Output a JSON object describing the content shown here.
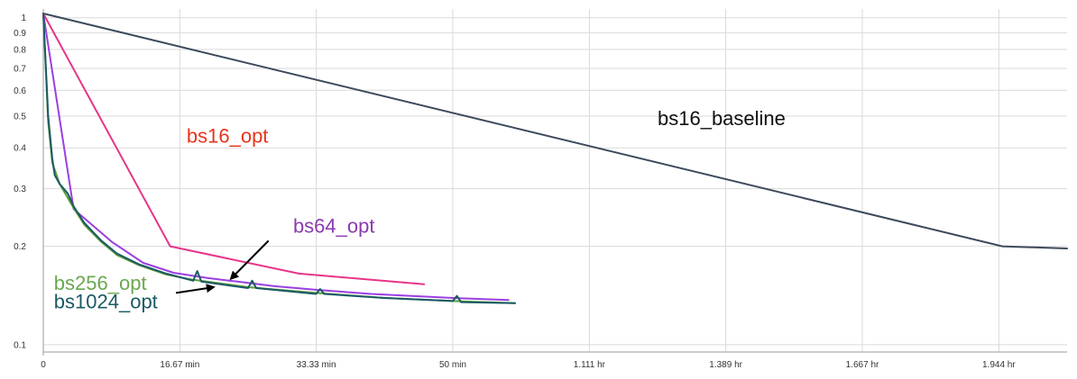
{
  "chart_data": {
    "type": "line",
    "title": "",
    "xlabel": "",
    "ylabel": "",
    "y_scale": "log",
    "grid": true,
    "xlim_minutes": [
      0,
      125
    ],
    "ylim": [
      0.095,
      1.05
    ],
    "x_ticks": [
      {
        "minutes": 0,
        "label": "0"
      },
      {
        "minutes": 16.67,
        "label": "16.67 min"
      },
      {
        "minutes": 33.33,
        "label": "33.33 min"
      },
      {
        "minutes": 50,
        "label": "50 min"
      },
      {
        "minutes": 66.67,
        "label": "1.111 hr"
      },
      {
        "minutes": 83.33,
        "label": "1.389 hr"
      },
      {
        "minutes": 100,
        "label": "1.667 hr"
      },
      {
        "minutes": 116.67,
        "label": "1.944 hr"
      }
    ],
    "y_ticks": [
      {
        "value": 1,
        "label": "1"
      },
      {
        "value": 0.9,
        "label": "0.9"
      },
      {
        "value": 0.8,
        "label": "0.8"
      },
      {
        "value": 0.7,
        "label": "0.7"
      },
      {
        "value": 0.6,
        "label": "0.6"
      },
      {
        "value": 0.5,
        "label": "0.5"
      },
      {
        "value": 0.4,
        "label": "0.4"
      },
      {
        "value": 0.3,
        "label": "0.3"
      },
      {
        "value": 0.2,
        "label": "0.2"
      },
      {
        "value": 0.1,
        "label": "0.1"
      }
    ],
    "series": [
      {
        "name": "bs16_baseline",
        "color": "#3d4a5c",
        "x": [
          0,
          117.1,
          125
        ],
        "y": [
          1.03,
          0.2,
          0.197
        ]
      },
      {
        "name": "bs16_opt",
        "color": "#e8348a",
        "x": [
          0,
          15.5,
          31.2,
          46.5
        ],
        "y": [
          1.03,
          0.2,
          0.165,
          0.153
        ]
      },
      {
        "name": "bs64_opt",
        "color": "#9b3fe0",
        "x": [
          0,
          3.7,
          8.4,
          12.2,
          15.9,
          20.0,
          23.7,
          28.2,
          33.6,
          40.0,
          50.0,
          56.8
        ],
        "y": [
          1.03,
          0.26,
          0.206,
          0.178,
          0.166,
          0.16,
          0.156,
          0.151,
          0.147,
          0.143,
          0.139,
          0.137
        ]
      },
      {
        "name": "bs256_opt",
        "color": "#5f9e3a",
        "x": [
          0,
          0.3,
          0.6,
          1.1,
          2.0,
          3.7,
          5.0,
          7.0,
          9.0,
          11.7,
          15.0,
          18.3,
          25.0,
          33.3,
          41.7,
          50.0,
          57.6
        ],
        "y": [
          1.03,
          0.7,
          0.48,
          0.36,
          0.31,
          0.262,
          0.233,
          0.207,
          0.188,
          0.175,
          0.164,
          0.158,
          0.15,
          0.144,
          0.139,
          0.136,
          0.134
        ]
      },
      {
        "name": "bs1024_opt",
        "color": "#1a5a66",
        "x": [
          0,
          0.3,
          0.6,
          1.1,
          1.4,
          2.0,
          3.0,
          3.7,
          5.0,
          7.0,
          9.0,
          11.7,
          15.0,
          18.3,
          18.8,
          19.3,
          25.0,
          25.5,
          26.0,
          33.3,
          33.8,
          34.3,
          41.7,
          50.0,
          50.5,
          51.0,
          57.6
        ],
        "y": [
          1.03,
          0.72,
          0.5,
          0.37,
          0.33,
          0.31,
          0.29,
          0.265,
          0.236,
          0.209,
          0.19,
          0.176,
          0.165,
          0.157,
          0.168,
          0.156,
          0.149,
          0.157,
          0.149,
          0.143,
          0.148,
          0.143,
          0.139,
          0.136,
          0.141,
          0.135,
          0.134
        ]
      }
    ],
    "annotations": [
      {
        "text": "bs16_baseline",
        "color": "#111111",
        "x": 75,
        "y": 0.47
      },
      {
        "text": "bs16_opt",
        "color": "#e8341c",
        "x": 17.5,
        "y": 0.415
      },
      {
        "text": "bs64_opt",
        "color": "#8b3ab0",
        "x": 30.5,
        "y": 0.22
      },
      {
        "text": "bs256_opt",
        "color": "#6aa84f",
        "x": 1.3,
        "y": 0.147
      },
      {
        "text": "bs1024_opt",
        "color": "#1a5a66",
        "x": 1.3,
        "y": 0.129
      }
    ],
    "arrows": [
      {
        "from": [
          27.5,
          0.208
        ],
        "to": [
          22.9,
          0.159
        ]
      },
      {
        "from": [
          16.2,
          0.144
        ],
        "to": [
          20.8,
          0.15
        ]
      }
    ]
  }
}
